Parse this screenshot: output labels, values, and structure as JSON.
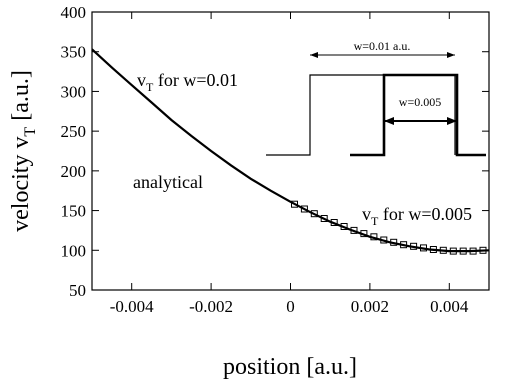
{
  "chart_data": {
    "type": "line",
    "title": "",
    "xlabel": "position [a.u.]",
    "ylabel_main": "velocity v",
    "ylabel_sub": "T",
    "ylabel_unit": "[a.u.]",
    "xlim": [
      -0.005,
      0.005
    ],
    "ylim": [
      50,
      400
    ],
    "grid": false,
    "legend": "none",
    "x_ticks": [
      -0.004,
      -0.002,
      0,
      0.002,
      0.004
    ],
    "x_tick_labels": [
      "-0.004",
      "-0.002",
      "0",
      "0.002",
      "0.004"
    ],
    "y_ticks": [
      50,
      100,
      150,
      200,
      250,
      300,
      350,
      400
    ],
    "y_tick_labels": [
      "50",
      "100",
      "150",
      "200",
      "250",
      "300",
      "350",
      "400"
    ],
    "series": [
      {
        "style": "solid-thick",
        "x": [
          -0.005,
          -0.0045,
          -0.004,
          -0.0035,
          -0.003,
          -0.0025,
          -0.002,
          -0.0015,
          -0.001,
          -0.0005,
          0,
          0.0005,
          0.001,
          0.0015,
          0.002,
          0.0025,
          0.003,
          0.0035,
          0.004,
          0.0045,
          0.005
        ],
        "y": [
          353,
          330,
          308,
          286,
          264,
          244,
          225,
          207,
          190,
          175,
          161,
          148,
          136,
          126,
          117,
          110,
          105,
          101,
          99,
          99,
          100
        ]
      },
      {
        "style": "square-markers",
        "x": [
          0.0001,
          0.00035,
          0.0006,
          0.00085,
          0.0011,
          0.00135,
          0.0016,
          0.00185,
          0.0021,
          0.00235,
          0.0026,
          0.00285,
          0.0031,
          0.00335,
          0.0036,
          0.00385,
          0.0041,
          0.00435,
          0.0046,
          0.00485
        ],
        "y": [
          158,
          152,
          146,
          140,
          135,
          130,
          125,
          121,
          117,
          113,
          110,
          107,
          105,
          103,
          101,
          100,
          99,
          99,
          99,
          100
        ]
      }
    ],
    "annotations": {
      "w001_prefix": "v",
      "w001_sub": "T",
      "w001_suffix": " for w=0.01",
      "analytical": "analytical",
      "w0005_prefix": "v",
      "w0005_sub": "T",
      "w0005_suffix": " for w=0.005"
    },
    "inset": {
      "label_outer": "w=0.01 a.u.",
      "label_inner": "w=0.005"
    }
  }
}
